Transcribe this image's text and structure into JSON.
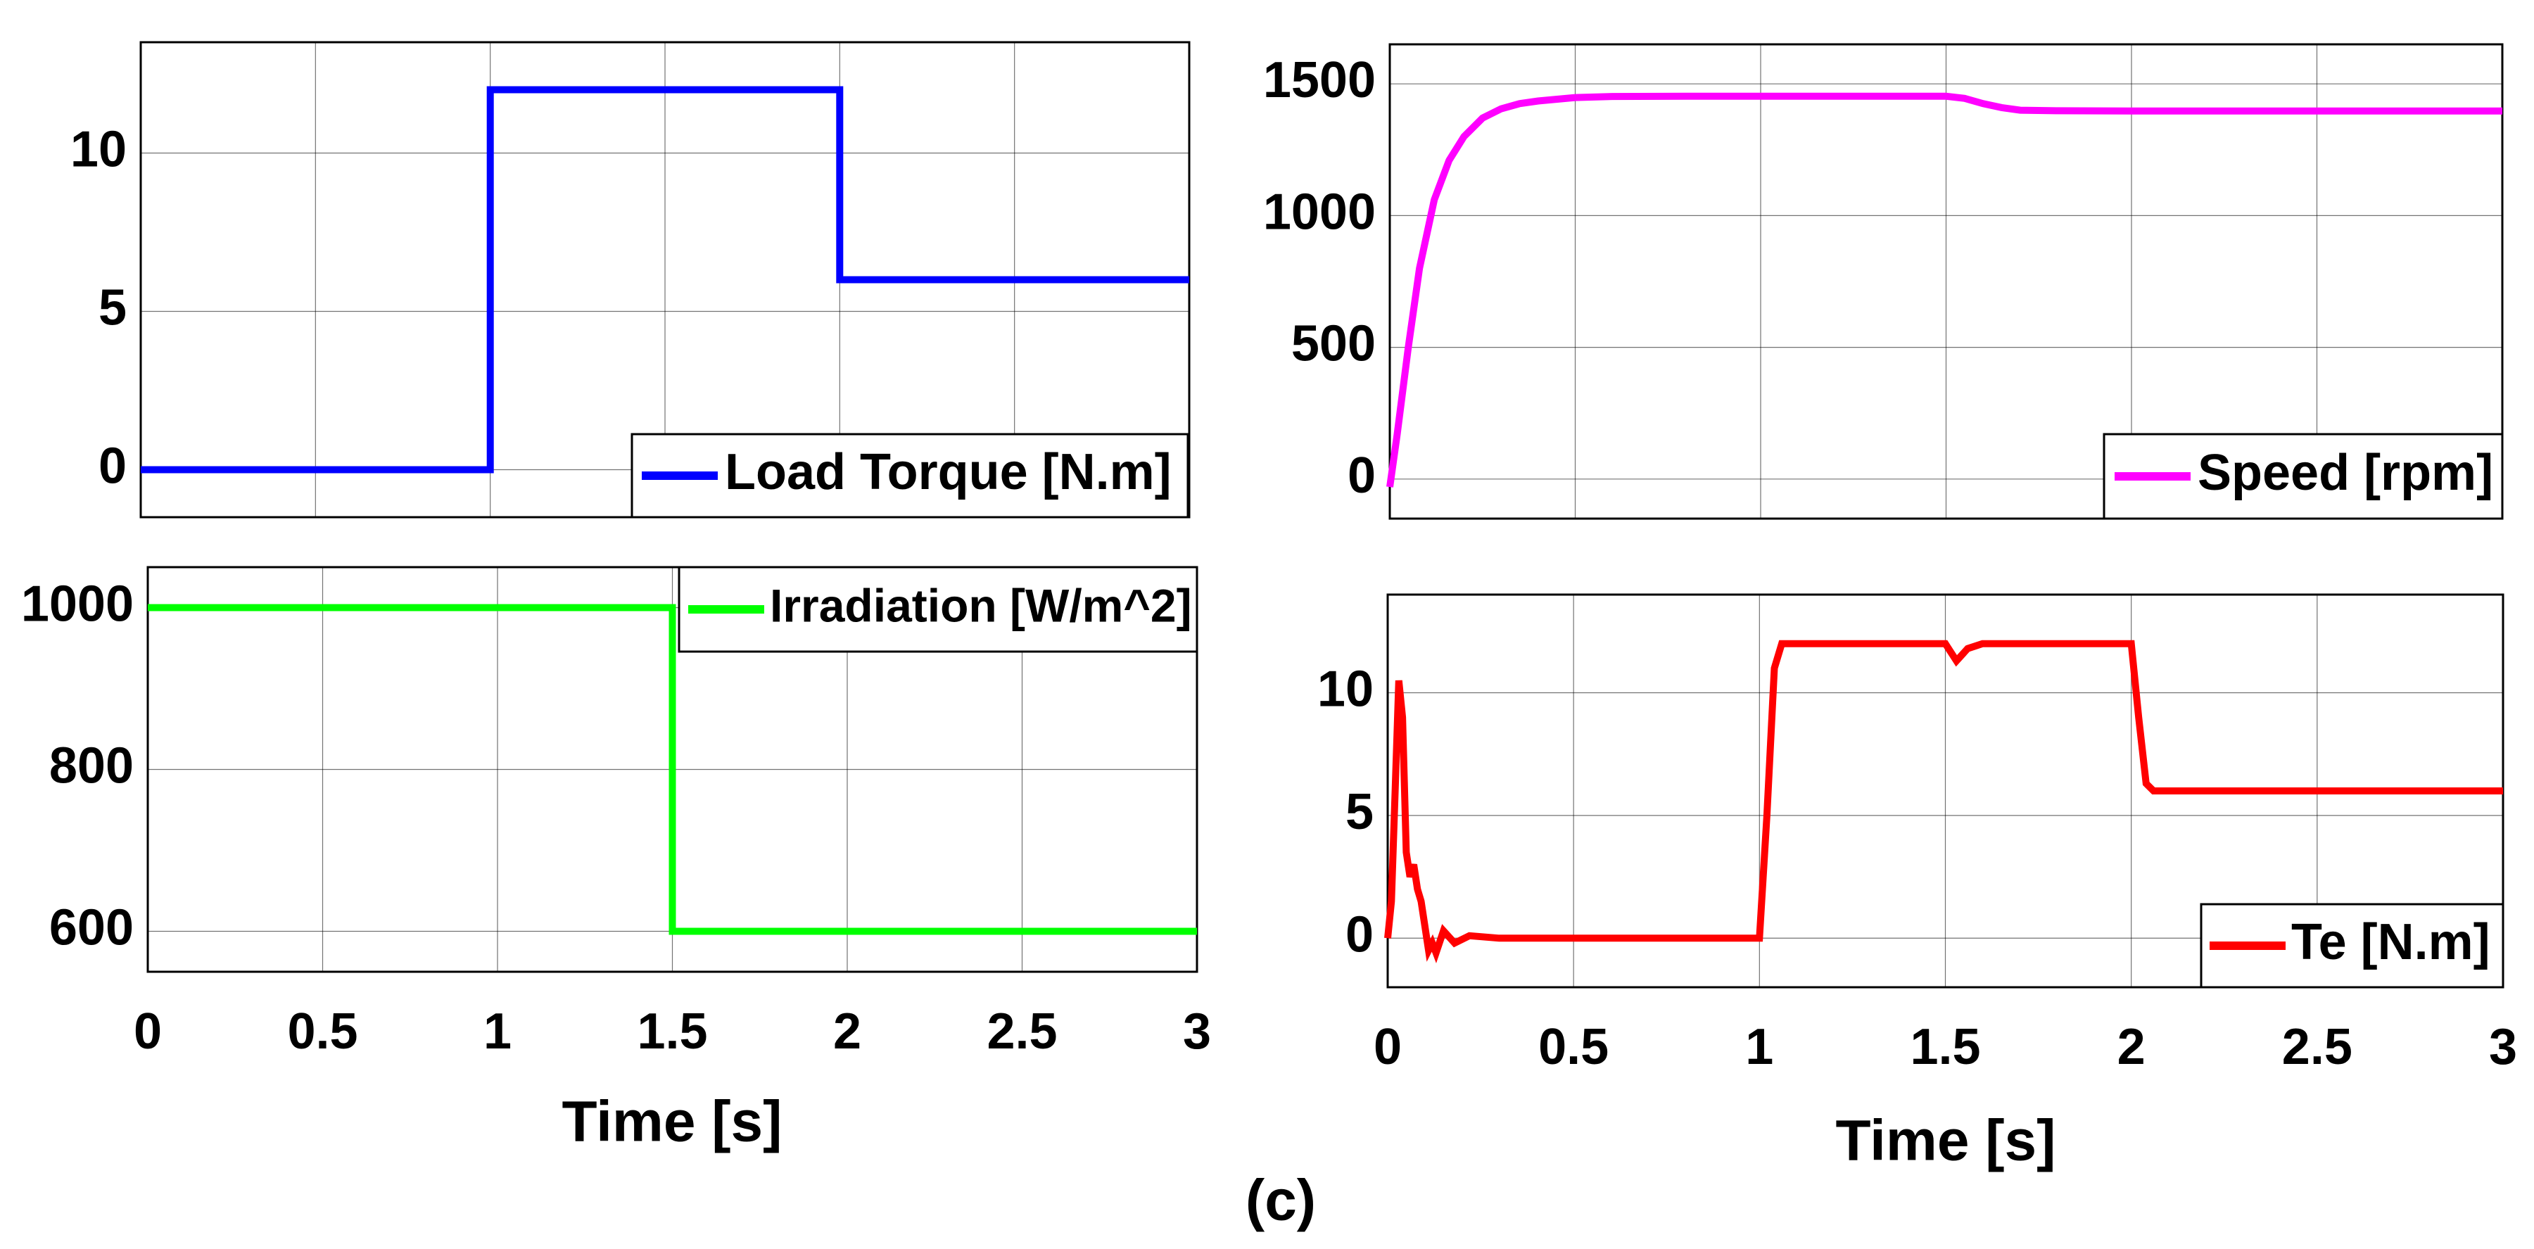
{
  "figure": {
    "caption": "(c)"
  },
  "chart_data": [
    {
      "id": "load_torque",
      "type": "line",
      "title": "",
      "xlabel": "",
      "ylabel": "",
      "xlim": [
        0,
        3
      ],
      "ylim": [
        -1.5,
        13.5
      ],
      "xticks": [
        0,
        0.5,
        1,
        1.5,
        2,
        2.5,
        3
      ],
      "xtick_labels": [],
      "yticks": [
        0,
        5,
        10
      ],
      "ytick_labels": [
        "0",
        "5",
        "10"
      ],
      "grid": true,
      "legend_position": "bottom-right",
      "series": [
        {
          "name": "Load Torque [N.m]",
          "color": "#0000ff",
          "x": [
            0,
            1,
            1,
            2,
            2,
            3
          ],
          "y": [
            0,
            0,
            12,
            12,
            6,
            6
          ]
        }
      ]
    },
    {
      "id": "speed",
      "type": "line",
      "title": "",
      "xlabel": "",
      "ylabel": "",
      "xlim": [
        0,
        3
      ],
      "ylim": [
        -150,
        1650
      ],
      "xticks": [
        0,
        0.5,
        1,
        1.5,
        2,
        2.5,
        3
      ],
      "xtick_labels": [],
      "yticks": [
        0,
        500,
        1000,
        1500
      ],
      "ytick_labels": [
        "0",
        "500",
        "1000",
        "1500"
      ],
      "grid": true,
      "legend_position": "bottom-right",
      "series": [
        {
          "name": "Speed [rpm]",
          "color": "#ff00ff",
          "x": [
            0,
            0.02,
            0.05,
            0.08,
            0.12,
            0.16,
            0.2,
            0.25,
            0.3,
            0.35,
            0.4,
            0.5,
            0.6,
            0.8,
            1.0,
            1.2,
            1.5,
            1.55,
            1.6,
            1.65,
            1.7,
            1.8,
            2.0,
            2.2,
            2.5,
            2.8,
            3.0
          ],
          "y": [
            -30,
            170,
            500,
            800,
            1060,
            1210,
            1300,
            1370,
            1405,
            1425,
            1435,
            1448,
            1452,
            1453,
            1453,
            1453,
            1453,
            1445,
            1425,
            1410,
            1400,
            1398,
            1397,
            1397,
            1397,
            1397,
            1397
          ]
        }
      ]
    },
    {
      "id": "irradiation",
      "type": "line",
      "title": "",
      "xlabel": "Time [s]",
      "ylabel": "",
      "xlim": [
        0,
        3
      ],
      "ylim": [
        550,
        1050
      ],
      "xticks": [
        0,
        0.5,
        1,
        1.5,
        2,
        2.5,
        3
      ],
      "xtick_labels": [
        "0",
        "0.5",
        "1",
        "1.5",
        "2",
        "2.5",
        "3"
      ],
      "yticks": [
        600,
        800,
        1000
      ],
      "ytick_labels": [
        "600",
        "800",
        "1000"
      ],
      "grid": true,
      "legend_position": "top-right",
      "series": [
        {
          "name": "Irradiation [W/m^2]",
          "color": "#00ff00",
          "x": [
            0,
            1.5,
            1.5,
            3
          ],
          "y": [
            1000,
            1000,
            600,
            600
          ]
        }
      ]
    },
    {
      "id": "electromagnetic_torque",
      "type": "line",
      "title": "",
      "xlabel": "Time [s]",
      "ylabel": "",
      "xlim": [
        0,
        3
      ],
      "ylim": [
        -2,
        14
      ],
      "xticks": [
        0,
        0.5,
        1,
        1.5,
        2,
        2.5,
        3
      ],
      "xtick_labels": [
        "0",
        "0.5",
        "1",
        "1.5",
        "2",
        "2.5",
        "3"
      ],
      "yticks": [
        0,
        5,
        10
      ],
      "ytick_labels": [
        "0",
        "5",
        "10"
      ],
      "grid": true,
      "legend_position": "bottom-right",
      "series": [
        {
          "name": "Te [N.m]",
          "color": "#ff0000",
          "x": [
            0,
            0.01,
            0.02,
            0.03,
            0.04,
            0.05,
            0.06,
            0.07,
            0.08,
            0.09,
            0.1,
            0.11,
            0.12,
            0.13,
            0.15,
            0.18,
            0.22,
            0.3,
            0.5,
            0.8,
            1.0,
            1.02,
            1.04,
            1.06,
            1.1,
            1.3,
            1.5,
            1.53,
            1.56,
            1.6,
            1.8,
            2.0,
            2.02,
            2.04,
            2.06,
            2.1,
            2.5,
            3.0
          ],
          "y": [
            0,
            1.5,
            6,
            10.5,
            9,
            3.5,
            2.5,
            3,
            2,
            1.5,
            0.5,
            -0.5,
            -0.2,
            -0.6,
            0.3,
            -0.2,
            0.1,
            0,
            0,
            0,
            0,
            5,
            11,
            12,
            12,
            12,
            12,
            11.3,
            11.8,
            12,
            12,
            12,
            9,
            6.3,
            6,
            6,
            6,
            6
          ]
        }
      ]
    }
  ]
}
